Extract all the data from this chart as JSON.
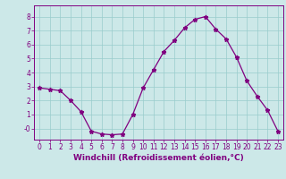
{
  "x": [
    0,
    1,
    2,
    3,
    4,
    5,
    6,
    7,
    8,
    9,
    10,
    11,
    12,
    13,
    14,
    15,
    16,
    17,
    18,
    19,
    20,
    21,
    22,
    23
  ],
  "y": [
    2.9,
    2.8,
    2.7,
    2.0,
    1.2,
    -0.2,
    -0.4,
    -0.45,
    -0.4,
    1.0,
    2.9,
    4.2,
    5.5,
    6.3,
    7.2,
    7.8,
    8.0,
    7.1,
    6.4,
    5.1,
    3.4,
    2.3,
    1.3,
    -0.2
  ],
  "line_color": "#800080",
  "marker": "*",
  "bg_color": "#cce8e8",
  "grid_color": "#99cccc",
  "xlabel": "Windchill (Refroidissement éolien,°C)",
  "xlabel_color": "#800080",
  "ylim": [
    -0.8,
    8.8
  ],
  "xlim": [
    -0.5,
    23.5
  ],
  "yticks": [
    0,
    1,
    2,
    3,
    4,
    5,
    6,
    7,
    8
  ],
  "ytick_labels": [
    "-0",
    "1",
    "2",
    "3",
    "4",
    "5",
    "6",
    "7",
    "8"
  ],
  "xticks": [
    0,
    1,
    2,
    3,
    4,
    5,
    6,
    7,
    8,
    9,
    10,
    11,
    12,
    13,
    14,
    15,
    16,
    17,
    18,
    19,
    20,
    21,
    22,
    23
  ],
  "tick_color": "#800080",
  "tick_label_size": 5.5,
  "xlabel_size": 6.5,
  "spine_color": "#800080",
  "marker_size": 3.5,
  "line_width": 0.9
}
